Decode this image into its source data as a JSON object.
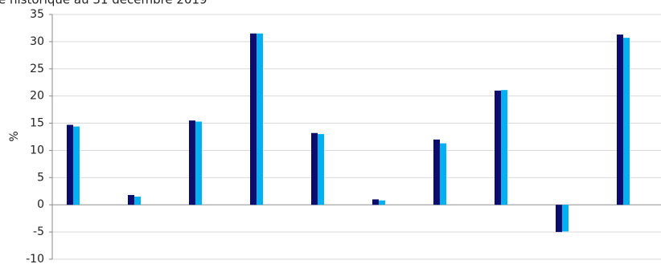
{
  "chart_data": {
    "type": "bar",
    "title": "e historique au 31 décembre 2019",
    "y_label": "%",
    "categories": [
      null,
      null,
      null,
      null,
      null,
      null,
      null,
      null,
      null,
      null
    ],
    "series": [
      {
        "color": "#0c0c6e",
        "values": [
          14.7,
          1.8,
          15.5,
          31.5,
          13.2,
          1.0,
          12.0,
          21.0,
          -5.0,
          31.3
        ]
      },
      {
        "color": "#00b0f0",
        "values": [
          14.4,
          1.5,
          15.3,
          31.5,
          13.0,
          0.8,
          11.3,
          21.1,
          -4.9,
          30.7
        ]
      }
    ],
    "ylim": [
      -10,
      35
    ],
    "yticks": [
      -10,
      -5,
      0,
      5,
      10,
      15,
      20,
      25,
      30,
      35
    ],
    "grid": true
  }
}
